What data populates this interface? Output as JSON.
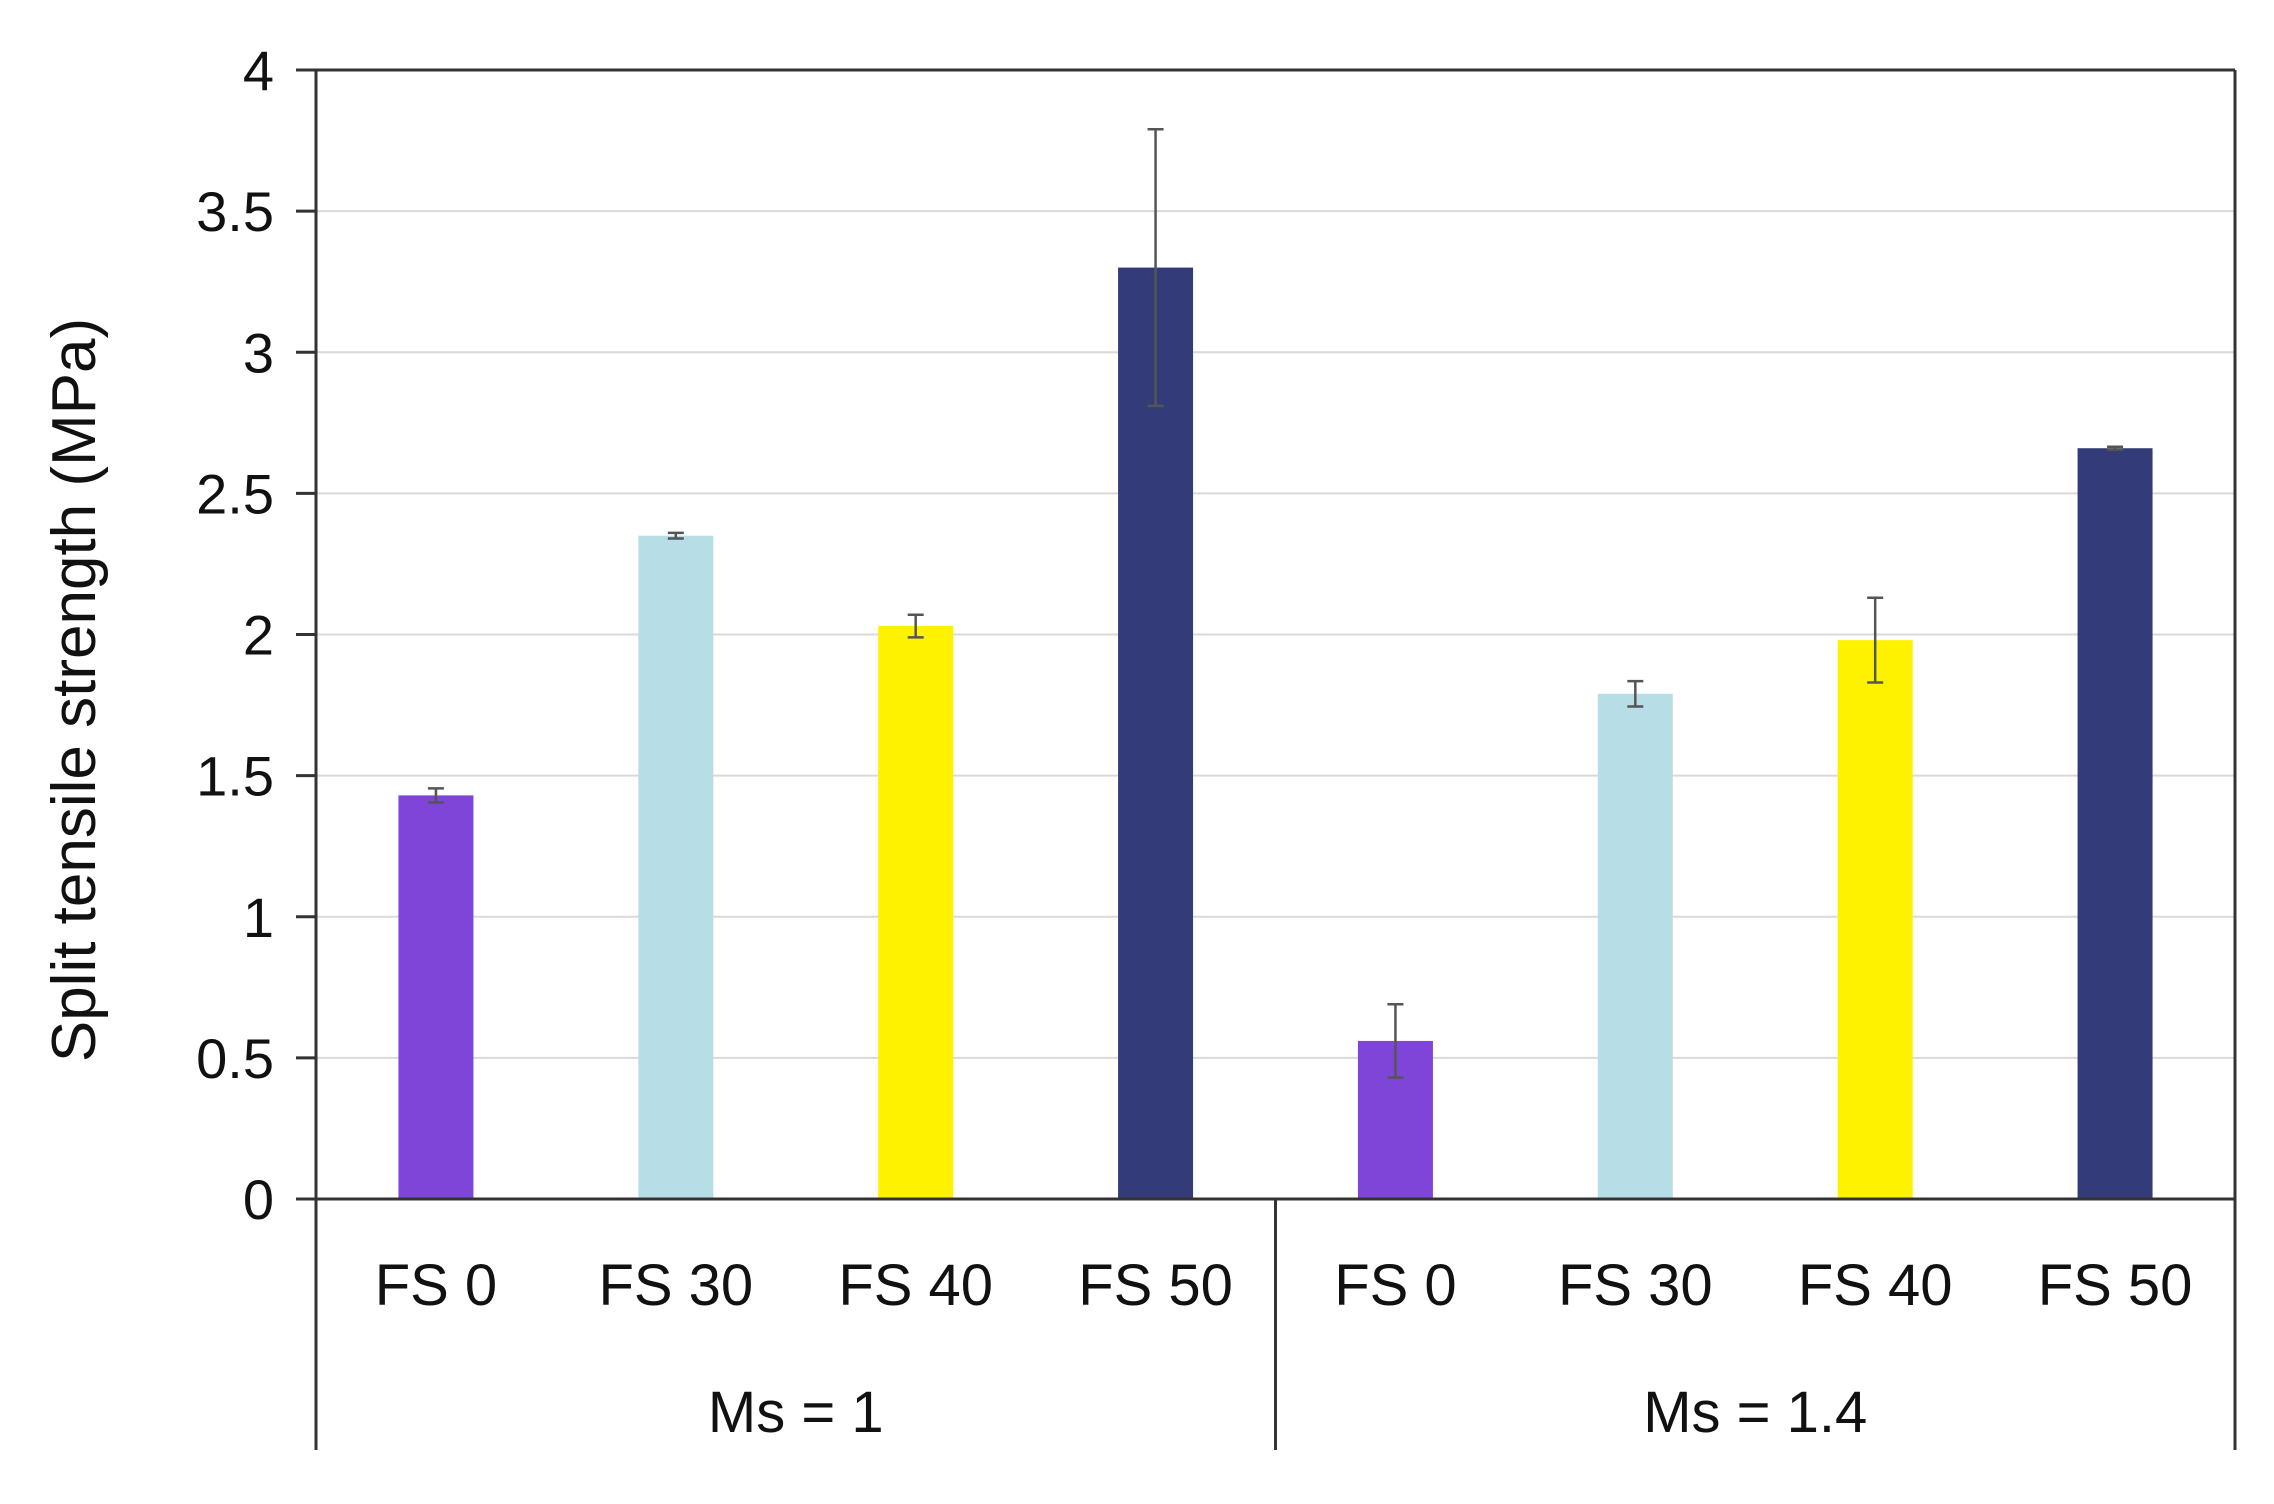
{
  "chart_data": {
    "type": "bar",
    "title": "",
    "xlabel": "",
    "ylabel": "Split tensile strength (MPa)",
    "ylim": [
      0,
      4
    ],
    "yticks": [
      0,
      0.5,
      1,
      1.5,
      2,
      2.5,
      3,
      3.5,
      4
    ],
    "ytick_labels": [
      "0",
      "0.5",
      "1",
      "1.5",
      "2",
      "2.5",
      "3",
      "3.5",
      "4"
    ],
    "grid": true,
    "legend": "none",
    "groups": [
      {
        "label": "Ms = 1",
        "categories": [
          "FS 0",
          "FS 30",
          "FS 40",
          "FS 50"
        ],
        "values": [
          1.43,
          2.35,
          2.03,
          3.3
        ],
        "errors": [
          0.025,
          0.01,
          0.04,
          0.49
        ]
      },
      {
        "label": "Ms = 1.4",
        "categories": [
          "FS 0",
          "FS 30",
          "FS 40",
          "FS 50"
        ],
        "values": [
          0.56,
          1.79,
          1.98,
          2.66
        ],
        "errors": [
          0.13,
          0.045,
          0.15,
          0.005
        ]
      }
    ],
    "colors": [
      "#7f45d8",
      "#b7dde6",
      "#fff200",
      "#333c78"
    ]
  }
}
